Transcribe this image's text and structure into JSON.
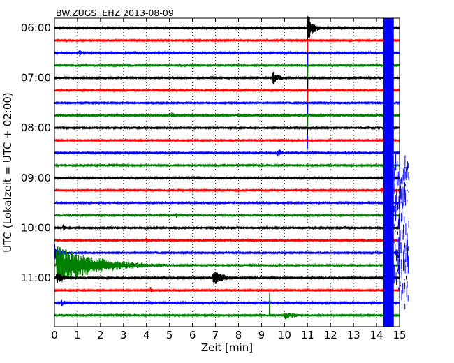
{
  "chart_data": {
    "type": "line",
    "title": "BW.ZUGS..EHZ 2013-08-09",
    "xlabel": "Zeit  [min]",
    "ylabel": "UTC (Lokalzeit = UTC + 02:00)",
    "xlim": [
      0,
      15
    ],
    "x_ticks": [
      0,
      1,
      2,
      3,
      4,
      5,
      6,
      7,
      8,
      9,
      10,
      11,
      12,
      13,
      14,
      15
    ],
    "y_tick_labels": [
      "06:00",
      "07:00",
      "08:00",
      "09:00",
      "10:00",
      "11:00"
    ],
    "grid": true,
    "trace_interval_min": 15,
    "series_colors": [
      "#000000",
      "#ff0000",
      "#0000ff",
      "#008000"
    ],
    "traces": [
      {
        "start": "06:00",
        "color": "#000000",
        "events": [
          {
            "t": 11.0,
            "amp": 22,
            "dur": 0.25
          },
          {
            "t": 11.0,
            "amp": 70,
            "dur": 0.03
          }
        ]
      },
      {
        "start": "06:15",
        "color": "#ff0000",
        "events": [
          {
            "t": 11.0,
            "amp": 70,
            "dur": 0.03
          }
        ]
      },
      {
        "start": "06:30",
        "color": "#0000ff",
        "events": [
          {
            "t": 11.0,
            "amp": 70,
            "dur": 0.03
          },
          {
            "t": 1.1,
            "amp": 5,
            "dur": 0.1
          }
        ]
      },
      {
        "start": "06:45",
        "color": "#008000",
        "events": [
          {
            "t": 11.0,
            "amp": 70,
            "dur": 0.03
          }
        ]
      },
      {
        "start": "07:00",
        "color": "#000000",
        "events": [
          {
            "t": 9.5,
            "amp": 10,
            "dur": 0.3
          },
          {
            "t": 11.0,
            "amp": 70,
            "dur": 0.03
          }
        ]
      },
      {
        "start": "07:15",
        "color": "#ff0000",
        "events": [
          {
            "t": 11.0,
            "amp": 70,
            "dur": 0.03
          }
        ]
      },
      {
        "start": "07:30",
        "color": "#0000ff",
        "events": [
          {
            "t": 11.0,
            "amp": 70,
            "dur": 0.03
          }
        ]
      },
      {
        "start": "07:45",
        "color": "#008000",
        "events": [
          {
            "t": 5.1,
            "amp": 6,
            "dur": 0.15
          },
          {
            "t": 11.0,
            "amp": 70,
            "dur": 0.03
          }
        ]
      },
      {
        "start": "08:00",
        "color": "#000000",
        "events": [
          {
            "t": 11.0,
            "amp": 12,
            "dur": 0.03
          }
        ]
      },
      {
        "start": "08:15",
        "color": "#ff0000",
        "events": []
      },
      {
        "start": "08:30",
        "color": "#0000ff",
        "events": [
          {
            "t": 9.7,
            "amp": 7,
            "dur": 0.25
          }
        ]
      },
      {
        "start": "08:45",
        "color": "#008000",
        "events": []
      },
      {
        "start": "09:00",
        "color": "#000000",
        "events": []
      },
      {
        "start": "09:15",
        "color": "#ff0000",
        "events": [
          {
            "t": 14.2,
            "amp": 6,
            "dur": 0.1
          }
        ]
      },
      {
        "start": "09:30",
        "color": "#0000ff",
        "events": []
      },
      {
        "start": "09:45",
        "color": "#008000",
        "events": [
          {
            "t": 5.3,
            "amp": 4,
            "dur": 0.1
          }
        ]
      },
      {
        "start": "10:00",
        "color": "#000000",
        "events": [
          {
            "t": 0.4,
            "amp": 6,
            "dur": 0.1
          }
        ]
      },
      {
        "start": "10:15",
        "color": "#ff0000",
        "events": [
          {
            "t": 4.0,
            "amp": 5,
            "dur": 0.1
          }
        ]
      },
      {
        "start": "10:30",
        "color": "#0000ff",
        "events": [
          {
            "t": 0.0,
            "amp": 14,
            "dur": 0.3
          }
        ]
      },
      {
        "start": "10:45",
        "color": "#008000",
        "events": [
          {
            "t": 0.1,
            "amp": 30,
            "dur": 1.8
          }
        ]
      },
      {
        "start": "11:00",
        "color": "#000000",
        "events": [
          {
            "t": 6.9,
            "amp": 12,
            "dur": 0.5
          },
          {
            "t": 0.1,
            "amp": 9,
            "dur": 0.4
          }
        ]
      },
      {
        "start": "11:15",
        "color": "#ff0000",
        "events": [
          {
            "t": 4.2,
            "amp": 5,
            "dur": 0.1
          }
        ]
      },
      {
        "start": "11:30",
        "color": "#0000ff",
        "events": [
          {
            "t": 0.3,
            "amp": 6,
            "dur": 0.2
          }
        ]
      },
      {
        "start": "11:45",
        "color": "#008000",
        "events": [
          {
            "t": 9.35,
            "amp": 45,
            "dur": 0.05
          },
          {
            "t": 10.0,
            "amp": 6,
            "dur": 0.6
          }
        ]
      }
    ],
    "saturated_segment": {
      "x_start": 14.3,
      "x_end": 14.75,
      "color": "#0000ff"
    }
  }
}
